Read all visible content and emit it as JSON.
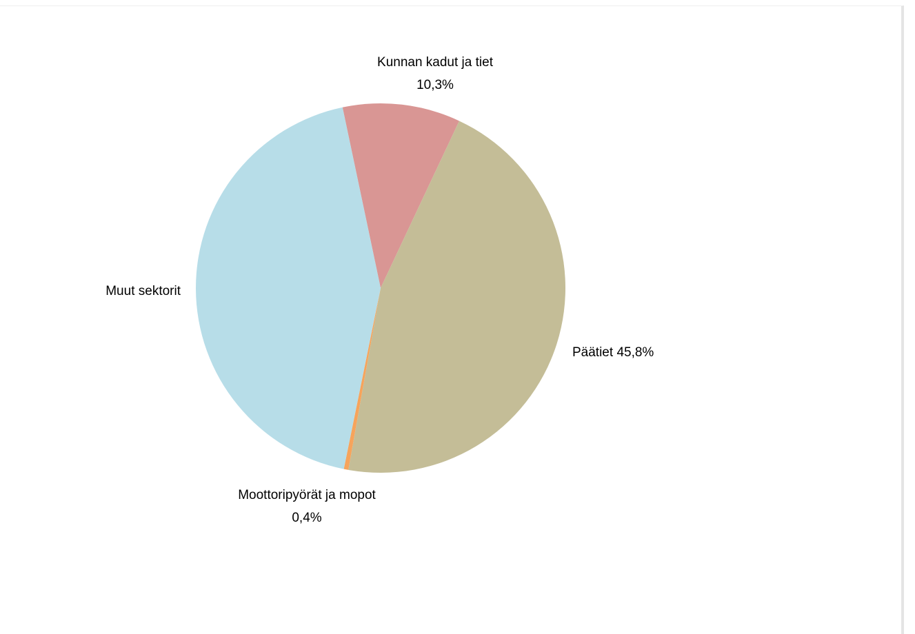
{
  "chart_data": {
    "type": "pie",
    "categories": [
      "Kunnan kadut ja tiet",
      "Päätiet",
      "Moottoripyörät ja mopot",
      "Muut sektorit"
    ],
    "values": [
      10.3,
      45.8,
      0.4,
      43.5
    ],
    "value_labels": [
      "10,3%",
      "45,8%",
      "0,4%",
      null
    ],
    "colors": [
      "#d99694",
      "#c4bd97",
      "#f6a45c",
      "#b7dde8"
    ]
  }
}
